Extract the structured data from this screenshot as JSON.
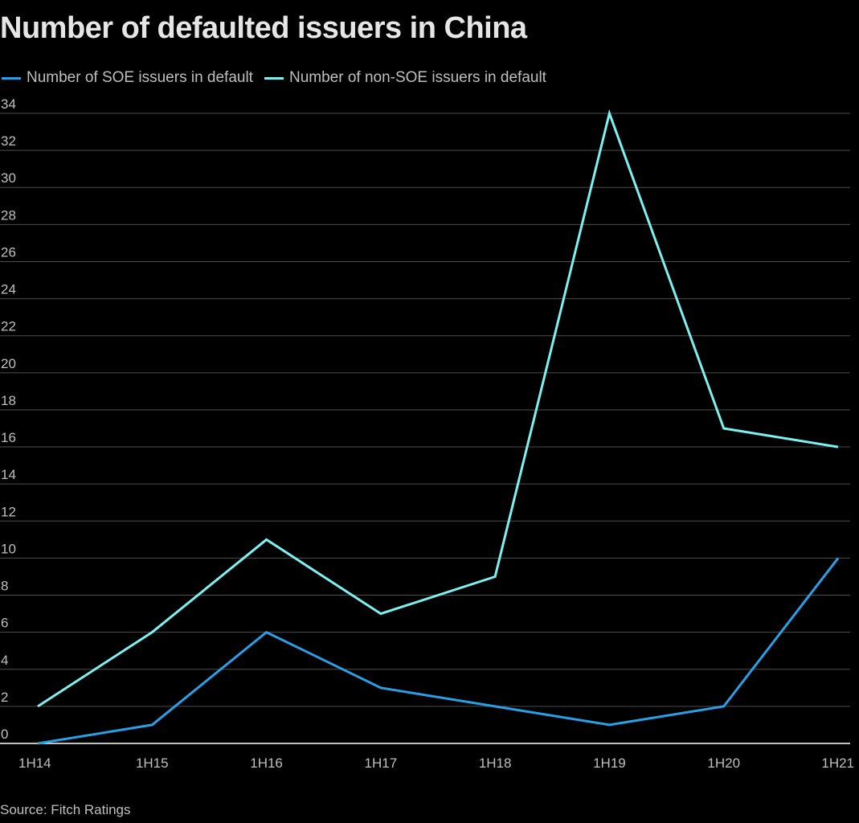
{
  "chart_data": {
    "type": "line",
    "title": "Number of defaulted issuers in China",
    "x": [
      "1H14",
      "1H15",
      "1H16",
      "1H17",
      "1H18",
      "1H19",
      "1H20",
      "1H21"
    ],
    "series": [
      {
        "name": "Number of SOE issuers in default",
        "color": "#2a9fe6",
        "values": [
          0,
          1,
          6,
          3,
          2,
          1,
          2,
          10
        ]
      },
      {
        "name": "Number of non-SOE issuers in default",
        "color": "#7ff0f0",
        "values": [
          2,
          6,
          11,
          7,
          9,
          34,
          17,
          16
        ]
      }
    ],
    "ylim": [
      0,
      34
    ],
    "yticks": [
      0,
      2,
      4,
      6,
      8,
      10,
      12,
      14,
      16,
      18,
      20,
      22,
      24,
      26,
      28,
      30,
      32,
      34
    ],
    "grid": true,
    "legend_position": "top-left"
  },
  "source": "Source: Fitch Ratings",
  "colors": {
    "background": "#000000",
    "gridline": "#4d4d4d",
    "axis": "#ffffff",
    "tick_text": "#bfbfbf"
  }
}
